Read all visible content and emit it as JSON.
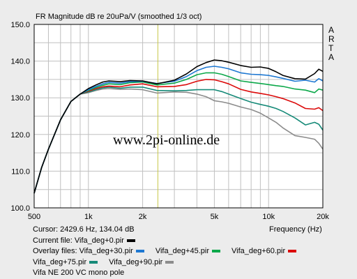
{
  "chart_data": {
    "type": "line",
    "title": "FR Magnitude dB re 20uPa/V (smoothed 1/3 oct)",
    "brand": "A R T A",
    "watermark": "www.2pi-online.de",
    "xlabel": "Frequency (Hz)",
    "x_scale": "log",
    "xlim": [
      500,
      20000
    ],
    "ylim": [
      100,
      150
    ],
    "y_ticks": [
      "150.0",
      "140.0",
      "130.0",
      "120.0",
      "110.0",
      "100.0"
    ],
    "x_ticks": [
      {
        "value": 500,
        "label": "500"
      },
      {
        "value": 1000,
        "label": "1k"
      },
      {
        "value": 2000,
        "label": "2k"
      },
      {
        "value": 5000,
        "label": "5k"
      },
      {
        "value": 10000,
        "label": "10k"
      },
      {
        "value": 20000,
        "label": "20k"
      }
    ],
    "cursor_freq": 2429.6,
    "grid": true,
    "series": [
      {
        "name": "Vifa_deg+0.pir",
        "color": "#000000",
        "x": [
          500,
          550,
          600,
          700,
          800,
          900,
          1000,
          1100,
          1200,
          1300,
          1500,
          1700,
          2000,
          2400,
          3000,
          3500,
          4000,
          4500,
          5000,
          5500,
          6000,
          7000,
          8000,
          9000,
          10000,
          11000,
          12000,
          14000,
          16000,
          18000,
          19000,
          20000
        ],
        "y": [
          104,
          111,
          116,
          124,
          129,
          131,
          132.5,
          133.5,
          134.3,
          134.6,
          134.4,
          134.7,
          134.6,
          133.8,
          134.8,
          136.5,
          138.5,
          139.6,
          140.3,
          140.1,
          139.7,
          138.8,
          138.3,
          138.4,
          138.0,
          137.1,
          136.1,
          135.2,
          135.1,
          136.6,
          137.8,
          137.2
        ]
      },
      {
        "name": "Vifa_deg+30.pir",
        "color": "#1e78d2",
        "x": [
          500,
          550,
          600,
          700,
          800,
          900,
          1000,
          1100,
          1200,
          1300,
          1500,
          1700,
          2000,
          2400,
          3000,
          3500,
          4000,
          4500,
          5000,
          5500,
          6000,
          7000,
          8000,
          9000,
          10000,
          11000,
          12000,
          14000,
          16000,
          18000,
          19000,
          20000
        ],
        "y": [
          104,
          111,
          116,
          124,
          129,
          131,
          132.2,
          133.1,
          133.8,
          134.2,
          134.0,
          134.4,
          134.5,
          133.9,
          134.5,
          135.8,
          137.4,
          138.3,
          138.6,
          138.3,
          137.9,
          136.8,
          136.4,
          136.3,
          136.1,
          135.7,
          135.3,
          134.5,
          134.8,
          134.3,
          135.2,
          134.6
        ]
      },
      {
        "name": "Vifa_deg+45.pir",
        "color": "#0ca84a",
        "x": [
          500,
          550,
          600,
          700,
          800,
          900,
          1000,
          1100,
          1200,
          1300,
          1500,
          1700,
          2000,
          2400,
          3000,
          3500,
          4000,
          4500,
          5000,
          5500,
          6000,
          7000,
          8000,
          9000,
          10000,
          11000,
          12000,
          14000,
          16000,
          18000,
          19000,
          20000
        ],
        "y": [
          104,
          111,
          116,
          124,
          129,
          131,
          132.0,
          132.8,
          133.4,
          133.8,
          133.6,
          134.1,
          134.3,
          133.5,
          134.0,
          135.0,
          136.3,
          136.8,
          136.8,
          136.4,
          135.8,
          134.6,
          134.2,
          133.9,
          133.6,
          133.3,
          133.1,
          132.4,
          132.1,
          131.4,
          132.4,
          132.1
        ]
      },
      {
        "name": "Vifa_deg+60.pir",
        "color": "#dc0a0a",
        "x": [
          500,
          550,
          600,
          700,
          800,
          900,
          1000,
          1100,
          1200,
          1300,
          1500,
          1700,
          2000,
          2400,
          3000,
          3500,
          4000,
          4500,
          5000,
          5500,
          6000,
          7000,
          8000,
          9000,
          10000,
          11000,
          12000,
          14000,
          16000,
          18000,
          19000,
          20000
        ],
        "y": [
          104,
          111,
          116,
          124,
          129,
          131,
          131.8,
          132.5,
          133.0,
          133.2,
          133.0,
          133.5,
          133.8,
          133.0,
          133.1,
          133.6,
          134.5,
          135.0,
          134.9,
          134.4,
          133.8,
          132.3,
          131.6,
          131.2,
          130.8,
          130.3,
          129.8,
          128.6,
          127.1,
          126.9,
          127.3,
          126.5
        ]
      },
      {
        "name": "Vifa_deg+75.pir",
        "color": "#168a78",
        "x": [
          500,
          550,
          600,
          700,
          800,
          900,
          1000,
          1100,
          1200,
          1300,
          1500,
          1700,
          2000,
          2400,
          3000,
          3500,
          4000,
          4500,
          5000,
          5500,
          6000,
          7000,
          8000,
          9000,
          10000,
          11000,
          12000,
          14000,
          16000,
          18000,
          19000,
          20000
        ],
        "y": [
          104,
          111,
          116,
          124,
          129,
          131,
          131.6,
          132.2,
          132.7,
          132.9,
          132.6,
          132.9,
          132.9,
          132.0,
          131.9,
          132.0,
          132.2,
          132.2,
          132.2,
          131.7,
          131.0,
          129.8,
          128.8,
          128.2,
          127.7,
          127.1,
          126.3,
          124.5,
          122.6,
          123.3,
          122.8,
          121.2
        ]
      },
      {
        "name": "Vifa_deg+90.pir",
        "color": "#8c8c8c",
        "x": [
          500,
          550,
          600,
          700,
          800,
          900,
          1000,
          1100,
          1200,
          1300,
          1500,
          1700,
          2000,
          2400,
          3000,
          3500,
          4000,
          4500,
          5000,
          5500,
          6000,
          7000,
          8000,
          9000,
          10000,
          11000,
          12000,
          14000,
          16000,
          18000,
          19000,
          20000
        ],
        "y": [
          104,
          111,
          116,
          124,
          129,
          131,
          131.4,
          132.0,
          132.4,
          132.5,
          132.3,
          132.4,
          132.2,
          131.3,
          131.6,
          131.5,
          131.0,
          130.3,
          129.2,
          128.9,
          128.5,
          127.5,
          126.8,
          125.8,
          124.5,
          123.3,
          121.8,
          119.7,
          119.2,
          118.7,
          117.6,
          116.0
        ]
      }
    ]
  },
  "info": {
    "cursor_text": "Cursor: 2429.6 Hz, 134.04 dB",
    "frequency_label": "Frequency (Hz)",
    "current_label": "Current file:",
    "current_file": "Vifa_deg+0.pir",
    "current_color": "#000000",
    "overlay_label": "Overlay files:",
    "overlay_row1": [
      {
        "name": "Vifa_deg+30.pir",
        "color": "#1e78d2"
      },
      {
        "name": "Vifa_deg+45.pir",
        "color": "#0ca84a"
      },
      {
        "name": "Vifa_deg+60.pir",
        "color": "#dc0a0a"
      }
    ],
    "overlay_row2": [
      {
        "name": "Vifa_deg+75.pir",
        "color": "#168a78"
      },
      {
        "name": "Vifa_deg+90.pir",
        "color": "#8c8c8c"
      }
    ],
    "note": "Vifa NE 200 VC mono pole"
  }
}
